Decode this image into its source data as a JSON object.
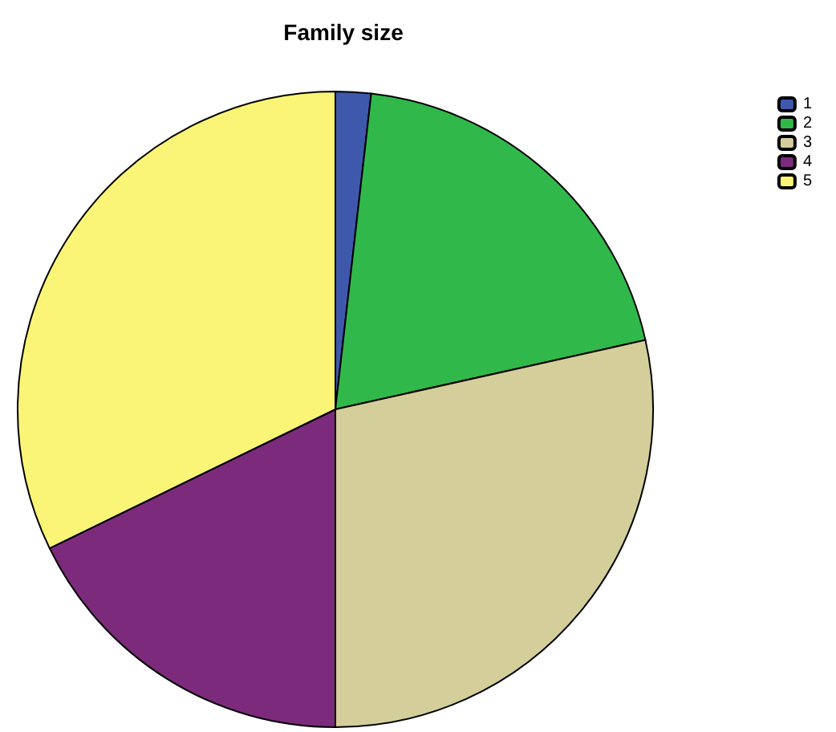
{
  "chart_data": {
    "type": "pie",
    "title": "Family size",
    "categories": [
      "1",
      "2",
      "3",
      "4",
      "5"
    ],
    "values": [
      1.8,
      19.7,
      28.5,
      17.8,
      32.2
    ],
    "colors": [
      "#3e58ac",
      "#30b84a",
      "#d4ce9a",
      "#7b2a7c",
      "#fbf577"
    ],
    "legend": "top right"
  }
}
